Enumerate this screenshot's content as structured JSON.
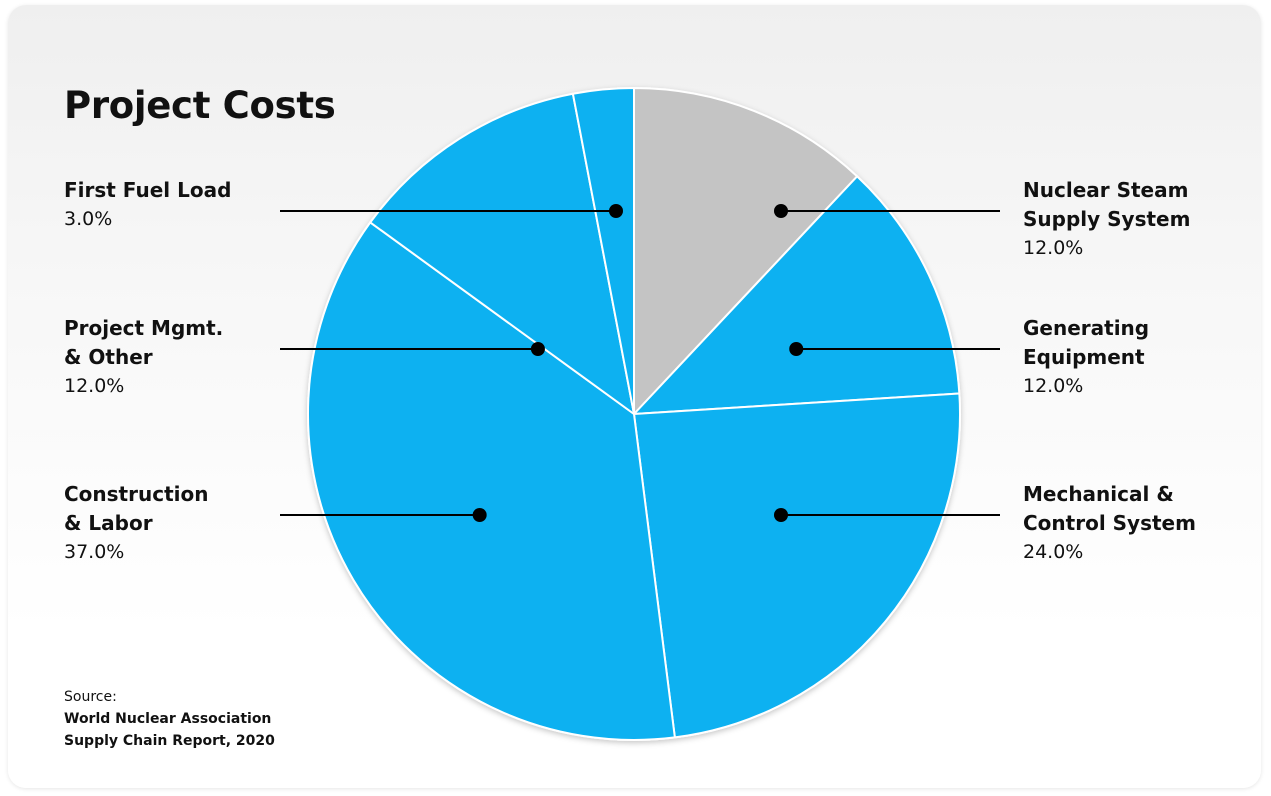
{
  "chart_data": {
    "type": "pie",
    "title": "Project Costs",
    "start_angle_deg": 0,
    "direction": "clockwise",
    "slices": [
      {
        "label": "Nuclear Steam\nSupply System",
        "value": 12.0,
        "display": "12.0%",
        "color": "#c4c4c4"
      },
      {
        "label": "Generating\nEquipment",
        "value": 12.0,
        "display": "12.0%",
        "color": "#0cb1f1"
      },
      {
        "label": "Mechanical &\nControl System",
        "value": 24.0,
        "display": "24.0%",
        "color": "#0cb1f1"
      },
      {
        "label": "Construction\n& Labor",
        "value": 37.0,
        "display": "37.0%",
        "color": "#0cb1f1"
      },
      {
        "label": "Project Mgmt.\n& Other",
        "value": 12.0,
        "display": "12.0%",
        "color": "#0cb1f1"
      },
      {
        "label": "First Fuel Load",
        "value": 3.0,
        "display": "3.0%",
        "color": "#0cb1f1"
      }
    ],
    "source_label": "Source:",
    "source_text": "World Nuclear Association\nSupply Chain Report, 2020"
  }
}
